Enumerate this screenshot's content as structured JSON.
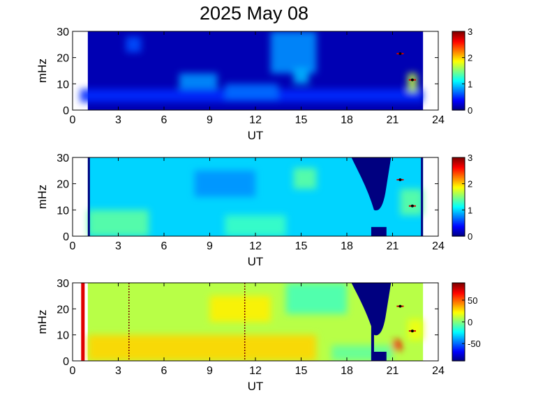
{
  "title": "2025 May 08",
  "chart_data": [
    {
      "type": "heatmap",
      "xlabel": "UT",
      "ylabel": "mHz",
      "xlim": [
        0,
        24
      ],
      "ylim": [
        0,
        30
      ],
      "xticks": [
        "0",
        "3",
        "6",
        "9",
        "12",
        "15",
        "18",
        "21",
        "24"
      ],
      "yticks": [
        "0",
        "10",
        "20",
        "30"
      ],
      "data_span_ut": [
        1,
        23
      ],
      "colorbar": {
        "range": [
          0,
          3
        ],
        "ticks": [
          "0",
          "1",
          "2",
          "3"
        ],
        "colormap": "jet"
      },
      "background_value": 0.15,
      "features": [
        {
          "ut": [
            0.5,
            23.0
          ],
          "mhz": [
            3,
            8
          ],
          "value": 0.5
        },
        {
          "ut": [
            7.0,
            9.5
          ],
          "mhz": [
            8,
            14
          ],
          "value": 0.8
        },
        {
          "ut": [
            10.0,
            13.5
          ],
          "mhz": [
            4,
            10
          ],
          "value": 0.7
        },
        {
          "ut": [
            13.0,
            16.0
          ],
          "mhz": [
            14,
            30
          ],
          "value": 0.8
        },
        {
          "ut": [
            14.5,
            15.5
          ],
          "mhz": [
            10,
            16
          ],
          "value": 0.9
        },
        {
          "ut": [
            22.0,
            22.6
          ],
          "mhz": [
            7,
            14
          ],
          "value": 1.7
        },
        {
          "ut": [
            3.5,
            4.5
          ],
          "mhz": [
            22,
            28
          ],
          "value": 0.6
        }
      ],
      "markers": [
        {
          "ut": 21.5,
          "mhz": 21.5
        },
        {
          "ut": 22.3,
          "mhz": 11.5
        }
      ]
    },
    {
      "type": "heatmap",
      "xlabel": "UT",
      "ylabel": "mHz",
      "xlim": [
        0,
        24
      ],
      "ylim": [
        0,
        30
      ],
      "xticks": [
        "0",
        "3",
        "6",
        "9",
        "12",
        "15",
        "18",
        "21",
        "24"
      ],
      "yticks": [
        "0",
        "10",
        "20",
        "30"
      ],
      "data_span_ut": [
        1,
        23
      ],
      "colorbar": {
        "range": [
          0,
          3
        ],
        "ticks": [
          "0",
          "1",
          "2",
          "3"
        ],
        "colormap": "jet"
      },
      "background_value": 1.0,
      "features": [
        {
          "ut": [
            1.0,
            5.0
          ],
          "mhz": [
            0,
            10
          ],
          "value": 1.4
        },
        {
          "ut": [
            10.0,
            14.0
          ],
          "mhz": [
            0,
            8
          ],
          "value": 1.3
        },
        {
          "ut": [
            14.5,
            16.0
          ],
          "mhz": [
            18,
            26
          ],
          "value": 1.4
        },
        {
          "ut": [
            8.0,
            12.0
          ],
          "mhz": [
            15,
            25
          ],
          "value": 0.8
        },
        {
          "ut": [
            21.5,
            23.0
          ],
          "mhz": [
            8,
            18
          ],
          "value": 1.4
        }
      ],
      "gap": {
        "ut": [
          18.3,
          20.9
        ],
        "mhz_bottom": [
          30,
          10
        ],
        "value": 0
      },
      "gap_box": {
        "ut": [
          19.6,
          20.6
        ],
        "mhz": [
          0,
          3.5
        ],
        "value": 0
      },
      "markers": [
        {
          "ut": 21.5,
          "mhz": 21.5
        },
        {
          "ut": 22.3,
          "mhz": 11.5
        }
      ]
    },
    {
      "type": "heatmap",
      "xlabel": "UT",
      "ylabel": "mHz",
      "xlim": [
        0,
        24
      ],
      "ylim": [
        0,
        30
      ],
      "xticks": [
        "0",
        "3",
        "6",
        "9",
        "12",
        "15",
        "18",
        "21",
        "24"
      ],
      "yticks": [
        "0",
        "10",
        "20",
        "30"
      ],
      "data_span_ut": [
        1,
        23
      ],
      "colorbar": {
        "range": [
          -90,
          90
        ],
        "ticks": [
          "50",
          "0",
          "-50"
        ],
        "tick_values": [
          50,
          0,
          -50
        ],
        "colormap": "jet"
      },
      "background_value": 10,
      "features": [
        {
          "ut": [
            1.0,
            16.0
          ],
          "mhz": [
            0,
            10
          ],
          "value": 30
        },
        {
          "ut": [
            9.0,
            13.0
          ],
          "mhz": [
            15,
            25
          ],
          "value": 25
        },
        {
          "ut": [
            14.0,
            18.0
          ],
          "mhz": [
            18,
            30
          ],
          "value": -10
        },
        {
          "ut": [
            17.0,
            21.0
          ],
          "mhz": [
            0,
            6
          ],
          "value": -5
        },
        {
          "ut": [
            21.0,
            21.6
          ],
          "mhz": [
            4,
            8
          ],
          "value": 70
        },
        {
          "ut": [
            22.0,
            23.0
          ],
          "mhz": [
            8,
            16
          ],
          "value": 20
        }
      ],
      "gap": {
        "ut": [
          18.3,
          20.9
        ],
        "mhz_bottom": [
          30,
          10
        ],
        "value": -90
      },
      "gap_box": {
        "ut": [
          19.6,
          20.6
        ],
        "mhz": [
          0,
          3.5
        ],
        "value": -90
      },
      "red_line_ut": 0.7,
      "dotted_lines_ut": [
        3.7,
        11.3
      ],
      "markers": [
        {
          "ut": 21.5,
          "mhz": 21.0
        },
        {
          "ut": 22.3,
          "mhz": 11.5
        }
      ]
    }
  ]
}
